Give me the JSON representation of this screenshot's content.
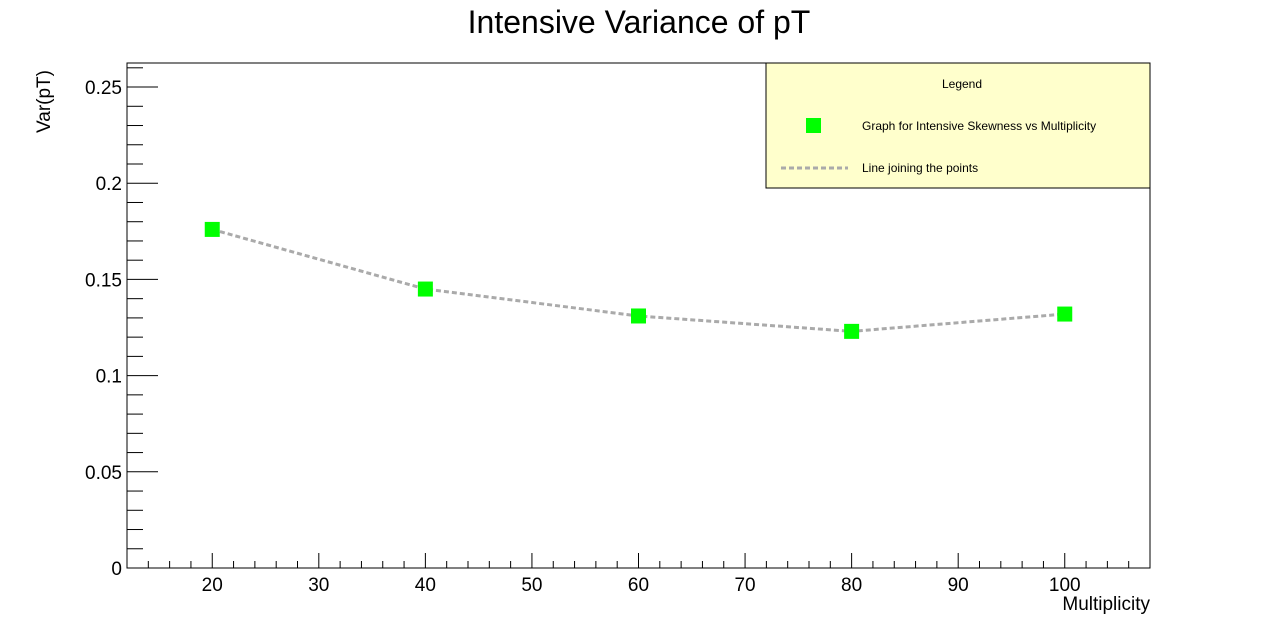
{
  "chart_data": {
    "type": "line",
    "title": "Intensive Variance of pT",
    "xlabel": "Multiplicity",
    "ylabel": "Var(pT)",
    "xlim": [
      12,
      108
    ],
    "ylim": [
      0,
      0.2625
    ],
    "x_ticks": [
      20,
      30,
      40,
      50,
      60,
      70,
      80,
      90,
      100
    ],
    "x_tick_labels": [
      "20",
      "30",
      "40",
      "50",
      "60",
      "70",
      "80",
      "90",
      "100"
    ],
    "y_ticks": [
      0,
      0.05,
      0.1,
      0.15,
      0.2,
      0.25
    ],
    "y_tick_labels": [
      "0",
      "0.05",
      "0.1",
      "0.15",
      "0.2",
      "0.25"
    ],
    "grid": false,
    "legend": {
      "title": "Legend",
      "placement": "top-right",
      "entries": [
        "Graph for Intensive Skewness vs Multiplicity",
        "Line joining the points"
      ]
    },
    "series": [
      {
        "x": [
          20,
          40,
          60,
          80,
          100
        ],
        "y": [
          0.176,
          0.145,
          0.131,
          0.123,
          0.132
        ],
        "marker_color": "#00ff00",
        "line_color": "#aaaaaa"
      }
    ]
  }
}
